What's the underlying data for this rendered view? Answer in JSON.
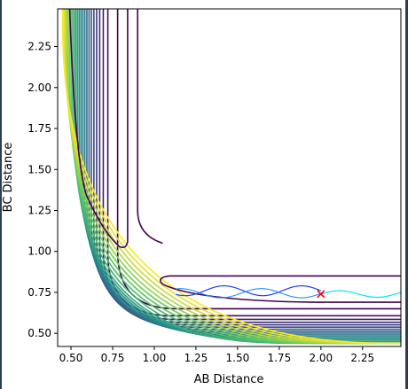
{
  "chart_data": {
    "type": "contour",
    "title": "",
    "xlabel": "AB Distance",
    "ylabel": "BC Distance",
    "xlim": [
      0.42,
      2.48
    ],
    "ylim": [
      0.42,
      2.48
    ],
    "x_ticks": [
      {
        "value": 0.5,
        "label": "0.50"
      },
      {
        "value": 0.75,
        "label": "0.75"
      },
      {
        "value": 1.0,
        "label": "1.00"
      },
      {
        "value": 1.25,
        "label": "1.25"
      },
      {
        "value": 1.5,
        "label": "1.50"
      },
      {
        "value": 1.75,
        "label": "1.75"
      },
      {
        "value": 2.0,
        "label": "2.00"
      },
      {
        "value": 2.25,
        "label": "2.25"
      }
    ],
    "y_ticks": [
      {
        "value": 0.5,
        "label": "0.50"
      },
      {
        "value": 0.75,
        "label": "0.75"
      },
      {
        "value": 1.0,
        "label": "1.00"
      },
      {
        "value": 1.25,
        "label": "1.25"
      },
      {
        "value": 1.5,
        "label": "1.50"
      },
      {
        "value": 1.75,
        "label": "1.75"
      },
      {
        "value": 2.0,
        "label": "2.00"
      },
      {
        "value": 2.25,
        "label": "2.25"
      }
    ],
    "colormap": [
      "#440154",
      "#3b528b",
      "#21918c",
      "#5ec962",
      "#fde725"
    ],
    "grid": false,
    "trajectory_color": "#1f3cff",
    "trajectory_tail_color": "#00e5ee",
    "start_marker": {
      "x": 2.0,
      "y": 0.74,
      "symbol": "x",
      "color": "#ff0000"
    }
  }
}
